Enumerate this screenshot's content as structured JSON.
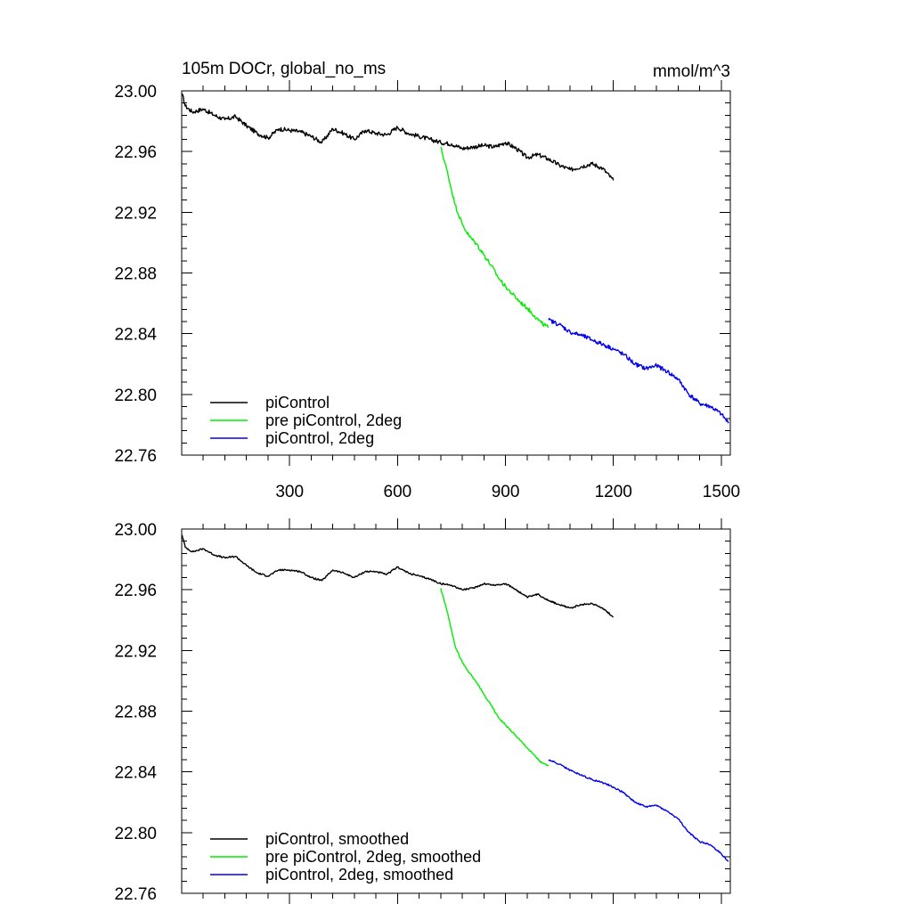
{
  "chart_data": [
    {
      "type": "line",
      "title": "105m DOCr, global_no_ms",
      "units_label": "mmol/m^3",
      "xlabel": "",
      "ylabel": "",
      "xlim": [
        0,
        1525
      ],
      "ylim": [
        22.76,
        23.0
      ],
      "xticks": [
        300,
        600,
        900,
        1200,
        1500
      ],
      "xtick_labels": [
        "300",
        "600",
        "900",
        "1200",
        "1500"
      ],
      "yticks": [
        22.76,
        22.8,
        22.84,
        22.88,
        22.92,
        22.96,
        23.0
      ],
      "ytick_labels": [
        "22.76",
        "22.80",
        "22.84",
        "22.88",
        "22.92",
        "22.96",
        "23.00"
      ],
      "grid": false,
      "legend_position": "bottom-left",
      "series": [
        {
          "name": "piControl",
          "color": "#000000",
          "x": [
            1,
            10,
            30,
            60,
            90,
            120,
            150,
            180,
            210,
            240,
            270,
            300,
            330,
            360,
            390,
            420,
            450,
            480,
            510,
            540,
            570,
            600,
            630,
            660,
            690,
            720,
            750,
            780,
            810,
            840,
            870,
            900,
            930,
            960,
            990,
            1020,
            1050,
            1080,
            1110,
            1140,
            1170,
            1200
          ],
          "y": [
            22.998,
            22.99,
            22.986,
            22.988,
            22.984,
            22.981,
            22.983,
            22.977,
            22.972,
            22.969,
            22.975,
            22.974,
            22.973,
            22.97,
            22.966,
            22.975,
            22.972,
            22.968,
            22.974,
            22.972,
            22.971,
            22.976,
            22.972,
            22.97,
            22.968,
            22.966,
            22.965,
            22.962,
            22.963,
            22.964,
            22.963,
            22.966,
            22.962,
            22.956,
            22.958,
            22.955,
            22.951,
            22.948,
            22.95,
            22.952,
            22.949,
            22.941
          ]
        },
        {
          "name": "pre piControl, 2deg",
          "color": "#00ee00",
          "x": [
            720,
            740,
            760,
            780,
            800,
            820,
            840,
            860,
            880,
            900,
            920,
            940,
            960,
            980,
            1000,
            1020
          ],
          "y": [
            22.963,
            22.945,
            22.925,
            22.912,
            22.904,
            22.899,
            22.892,
            22.885,
            22.877,
            22.871,
            22.866,
            22.861,
            22.857,
            22.852,
            22.847,
            22.844
          ]
        },
        {
          "name": "piControl, 2deg",
          "color": "#0000ee",
          "x": [
            1020,
            1050,
            1080,
            1110,
            1140,
            1170,
            1200,
            1230,
            1260,
            1290,
            1320,
            1350,
            1380,
            1410,
            1440,
            1470,
            1500,
            1520
          ],
          "y": [
            22.849,
            22.846,
            22.841,
            22.839,
            22.836,
            22.833,
            22.83,
            22.826,
            22.82,
            22.817,
            22.819,
            22.815,
            22.81,
            22.8,
            22.794,
            22.792,
            22.787,
            22.781
          ]
        }
      ]
    },
    {
      "type": "line",
      "title": "",
      "xlim": [
        0,
        1525
      ],
      "ylim": [
        22.76,
        23.0
      ],
      "xticks": [
        300,
        600,
        900,
        1200,
        1500
      ],
      "xtick_labels": [],
      "yticks": [
        22.76,
        22.8,
        22.84,
        22.88,
        22.92,
        22.96,
        23.0
      ],
      "ytick_labels": [
        "22.76",
        "22.80",
        "22.84",
        "22.88",
        "22.92",
        "22.96",
        "23.00"
      ],
      "grid": false,
      "legend_position": "bottom-left",
      "series": [
        {
          "name": "piControl, smoothed",
          "color": "#000000",
          "x": [
            1,
            10,
            30,
            60,
            90,
            120,
            150,
            180,
            210,
            240,
            270,
            300,
            330,
            360,
            390,
            420,
            450,
            480,
            510,
            540,
            570,
            600,
            630,
            660,
            690,
            720,
            750,
            780,
            810,
            840,
            870,
            900,
            930,
            960,
            990,
            1020,
            1050,
            1080,
            1110,
            1140,
            1170,
            1200
          ],
          "y": [
            22.996,
            22.988,
            22.985,
            22.987,
            22.983,
            22.981,
            22.982,
            22.976,
            22.971,
            22.969,
            22.973,
            22.973,
            22.972,
            22.968,
            22.966,
            22.973,
            22.971,
            22.968,
            22.972,
            22.972,
            22.97,
            22.975,
            22.971,
            22.969,
            22.967,
            22.964,
            22.963,
            22.96,
            22.961,
            22.964,
            22.963,
            22.964,
            22.96,
            22.955,
            22.957,
            22.953,
            22.95,
            22.948,
            22.95,
            22.951,
            22.948,
            22.942
          ]
        },
        {
          "name": "pre piControl, 2deg, smoothed",
          "color": "#00ee00",
          "x": [
            720,
            740,
            760,
            780,
            800,
            820,
            840,
            860,
            880,
            900,
            920,
            940,
            960,
            980,
            1000,
            1020
          ],
          "y": [
            22.961,
            22.944,
            22.923,
            22.912,
            22.905,
            22.899,
            22.891,
            22.884,
            22.876,
            22.871,
            22.866,
            22.861,
            22.856,
            22.851,
            22.846,
            22.844
          ]
        },
        {
          "name": "piControl, 2deg, smoothed",
          "color": "#0000ee",
          "x": [
            1020,
            1050,
            1080,
            1110,
            1140,
            1170,
            1200,
            1230,
            1260,
            1290,
            1320,
            1350,
            1380,
            1410,
            1440,
            1470,
            1500,
            1520
          ],
          "y": [
            22.848,
            22.845,
            22.841,
            22.838,
            22.835,
            22.833,
            22.83,
            22.826,
            22.82,
            22.817,
            22.818,
            22.814,
            22.809,
            22.8,
            22.794,
            22.792,
            22.786,
            22.781
          ]
        }
      ]
    }
  ]
}
